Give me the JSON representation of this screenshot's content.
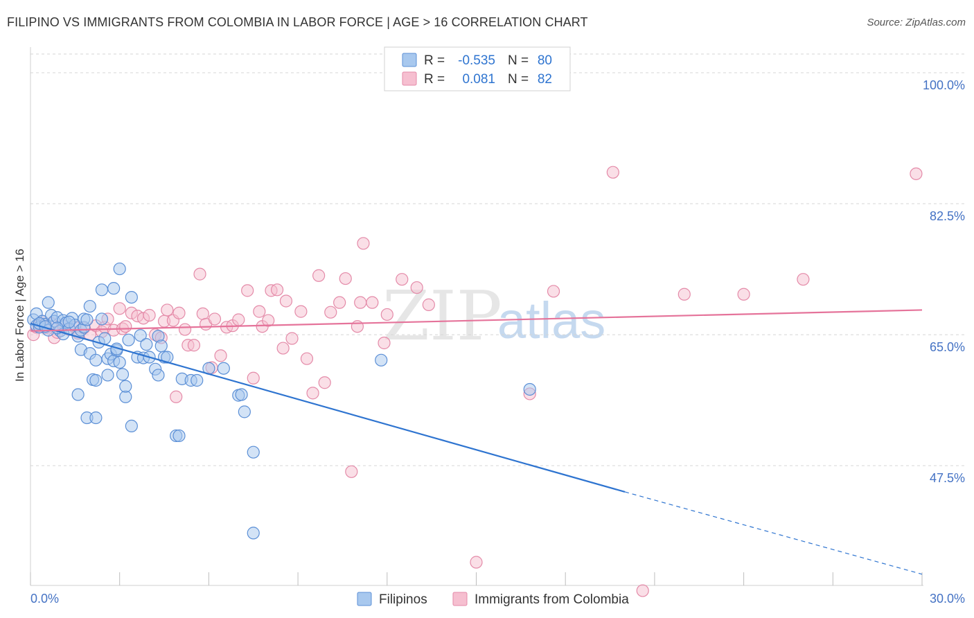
{
  "header": {
    "title": "FILIPINO VS IMMIGRANTS FROM COLOMBIA IN LABOR FORCE | AGE > 16 CORRELATION CHART",
    "source": "Source: ZipAtlas.com"
  },
  "legend_box": {
    "rows": [
      {
        "r_label": "R =",
        "r_value": "-0.535",
        "n_label": "N =",
        "n_value": "80"
      },
      {
        "r_label": "R =",
        "r_value": "0.081",
        "n_label": "N =",
        "n_value": "82"
      }
    ]
  },
  "watermark": {
    "zip": "ZIP",
    "atlas": "atlas"
  },
  "colors": {
    "blue_fill": "#a8c8ee",
    "blue_stroke": "#5b8fd6",
    "blue_line": "#2e74d0",
    "pink_fill": "#f6bfd0",
    "pink_stroke": "#e48aa8",
    "pink_line": "#e5739a",
    "tick_text": "#4472c4",
    "grid": "#d5d5d5"
  },
  "chart_data": {
    "type": "scatter",
    "title": "FILIPINO VS IMMIGRANTS FROM COLOMBIA IN LABOR FORCE | AGE > 16 CORRELATION CHART",
    "xlabel": "",
    "ylabel": "In Labor Force | Age > 16",
    "xlim": [
      0,
      30
    ],
    "ylim": [
      31.5,
      102.5
    ],
    "x_tick_labels": [
      "0.0%",
      "30.0%"
    ],
    "y_ticks": [
      47.5,
      65.0,
      82.5,
      100.0
    ],
    "y_tick_labels": [
      "47.5%",
      "65.0%",
      "82.5%",
      "100.0%"
    ],
    "grid": true,
    "legend_position": "bottom",
    "series": [
      {
        "name": "Filipinos",
        "color": "blue",
        "r": -0.535,
        "n": 80,
        "trend": {
          "x_start": 0.0,
          "y_start": 66.5,
          "x_solid_end": 20.0,
          "y_solid_end": 44.0,
          "x_end": 30.0,
          "y_end": 33.0
        },
        "points": [
          [
            0.1,
            67.0
          ],
          [
            0.2,
            66.2
          ],
          [
            0.2,
            67.8
          ],
          [
            0.3,
            66.0
          ],
          [
            0.4,
            66.8
          ],
          [
            0.5,
            66.4
          ],
          [
            0.6,
            69.3
          ],
          [
            0.6,
            65.6
          ],
          [
            0.7,
            67.6
          ],
          [
            0.8,
            66.8
          ],
          [
            0.9,
            67.3
          ],
          [
            1.0,
            65.5
          ],
          [
            1.1,
            66.9
          ],
          [
            1.1,
            65.1
          ],
          [
            1.2,
            66.6
          ],
          [
            1.3,
            65.8
          ],
          [
            1.4,
            67.2
          ],
          [
            1.5,
            66.3
          ],
          [
            1.6,
            64.8
          ],
          [
            1.6,
            57.0
          ],
          [
            1.7,
            65.6
          ],
          [
            1.7,
            63.0
          ],
          [
            1.8,
            66.0
          ],
          [
            1.8,
            67.1
          ],
          [
            1.9,
            67.0
          ],
          [
            1.9,
            53.9
          ],
          [
            2.0,
            68.8
          ],
          [
            2.0,
            62.5
          ],
          [
            2.1,
            59.0
          ],
          [
            2.2,
            58.9
          ],
          [
            2.2,
            61.6
          ],
          [
            2.2,
            53.9
          ],
          [
            2.3,
            64.0
          ],
          [
            2.4,
            67.1
          ],
          [
            2.4,
            71.0
          ],
          [
            2.5,
            64.5
          ],
          [
            2.6,
            61.8
          ],
          [
            2.6,
            59.6
          ],
          [
            2.7,
            62.4
          ],
          [
            2.8,
            71.2
          ],
          [
            2.8,
            61.5
          ],
          [
            2.9,
            62.9
          ],
          [
            3.0,
            73.8
          ],
          [
            3.0,
            61.3
          ],
          [
            3.1,
            59.7
          ],
          [
            3.2,
            56.7
          ],
          [
            3.2,
            58.1
          ],
          [
            3.3,
            64.3
          ],
          [
            3.4,
            70.0
          ],
          [
            3.4,
            52.8
          ],
          [
            3.6,
            62.0
          ],
          [
            3.7,
            64.9
          ],
          [
            3.8,
            61.9
          ],
          [
            3.9,
            63.7
          ],
          [
            4.0,
            62.0
          ],
          [
            4.2,
            60.4
          ],
          [
            4.3,
            64.8
          ],
          [
            4.3,
            59.6
          ],
          [
            4.4,
            63.5
          ],
          [
            4.5,
            62.0
          ],
          [
            4.9,
            51.5
          ],
          [
            5.0,
            51.5
          ],
          [
            5.1,
            59.1
          ],
          [
            5.4,
            58.9
          ],
          [
            5.6,
            58.9
          ],
          [
            6.0,
            60.5
          ],
          [
            6.5,
            60.5
          ],
          [
            7.0,
            56.9
          ],
          [
            7.1,
            57.0
          ],
          [
            7.2,
            54.7
          ],
          [
            7.5,
            49.3
          ],
          [
            7.5,
            38.5
          ],
          [
            11.8,
            61.6
          ],
          [
            16.8,
            57.7
          ],
          [
            0.3,
            66.5
          ],
          [
            0.5,
            66.1
          ],
          [
            0.9,
            65.9
          ],
          [
            1.3,
            66.7
          ],
          [
            2.9,
            63.1
          ],
          [
            4.6,
            62.0
          ]
        ]
      },
      {
        "name": "Immigrants from Colombia",
        "color": "pink",
        "r": 0.081,
        "n": 82,
        "trend": {
          "x_start": 0.0,
          "y_start": 65.5,
          "x_end": 30.0,
          "y_end": 68.3
        },
        "points": [
          [
            0.1,
            65.0
          ],
          [
            0.3,
            66.3
          ],
          [
            0.4,
            66.8
          ],
          [
            0.5,
            65.9
          ],
          [
            0.7,
            66.5
          ],
          [
            0.8,
            64.6
          ],
          [
            0.9,
            65.3
          ],
          [
            1.1,
            66.2
          ],
          [
            1.3,
            65.7
          ],
          [
            1.5,
            66.0
          ],
          [
            1.6,
            65.2
          ],
          [
            1.8,
            65.9
          ],
          [
            2.0,
            65.0
          ],
          [
            2.2,
            66.2
          ],
          [
            2.4,
            65.4
          ],
          [
            2.5,
            66.0
          ],
          [
            2.6,
            67.1
          ],
          [
            2.8,
            65.6
          ],
          [
            3.0,
            68.5
          ],
          [
            3.1,
            65.8
          ],
          [
            3.2,
            66.1
          ],
          [
            3.4,
            67.9
          ],
          [
            3.6,
            67.5
          ],
          [
            3.8,
            67.2
          ],
          [
            4.0,
            67.6
          ],
          [
            4.2,
            65.0
          ],
          [
            4.4,
            64.6
          ],
          [
            4.5,
            66.8
          ],
          [
            4.6,
            68.3
          ],
          [
            4.8,
            66.9
          ],
          [
            4.9,
            56.7
          ],
          [
            5.0,
            67.9
          ],
          [
            5.2,
            65.7
          ],
          [
            5.3,
            63.6
          ],
          [
            5.5,
            63.6
          ],
          [
            5.7,
            73.1
          ],
          [
            5.8,
            67.8
          ],
          [
            5.9,
            66.4
          ],
          [
            6.1,
            60.6
          ],
          [
            6.2,
            67.1
          ],
          [
            6.4,
            62.2
          ],
          [
            6.6,
            66.0
          ],
          [
            6.8,
            66.2
          ],
          [
            7.0,
            67.0
          ],
          [
            7.3,
            70.9
          ],
          [
            7.5,
            59.2
          ],
          [
            7.7,
            68.1
          ],
          [
            7.8,
            66.1
          ],
          [
            8.0,
            66.9
          ],
          [
            8.1,
            70.9
          ],
          [
            8.3,
            71.0
          ],
          [
            8.5,
            63.2
          ],
          [
            8.6,
            69.5
          ],
          [
            8.8,
            64.5
          ],
          [
            9.1,
            68.1
          ],
          [
            9.3,
            61.8
          ],
          [
            9.5,
            57.2
          ],
          [
            9.7,
            72.9
          ],
          [
            9.9,
            58.6
          ],
          [
            10.1,
            68.0
          ],
          [
            10.4,
            69.3
          ],
          [
            10.6,
            72.5
          ],
          [
            10.8,
            46.7
          ],
          [
            11.0,
            66.1
          ],
          [
            11.1,
            69.3
          ],
          [
            11.2,
            77.2
          ],
          [
            11.5,
            69.3
          ],
          [
            11.9,
            63.9
          ],
          [
            12.0,
            67.7
          ],
          [
            12.5,
            72.4
          ],
          [
            13.0,
            71.3
          ],
          [
            13.4,
            69.0
          ],
          [
            15.0,
            34.6
          ],
          [
            16.8,
            57.1
          ],
          [
            17.6,
            70.8
          ],
          [
            19.6,
            86.7
          ],
          [
            20.6,
            30.8
          ],
          [
            22.0,
            70.4
          ],
          [
            24.0,
            70.4
          ],
          [
            26.0,
            72.4
          ],
          [
            29.8,
            86.5
          ],
          [
            0.2,
            66.0
          ]
        ]
      }
    ]
  },
  "bottom_legend": {
    "items": [
      {
        "label": "Filipinos"
      },
      {
        "label": "Immigrants from Colombia"
      }
    ]
  }
}
